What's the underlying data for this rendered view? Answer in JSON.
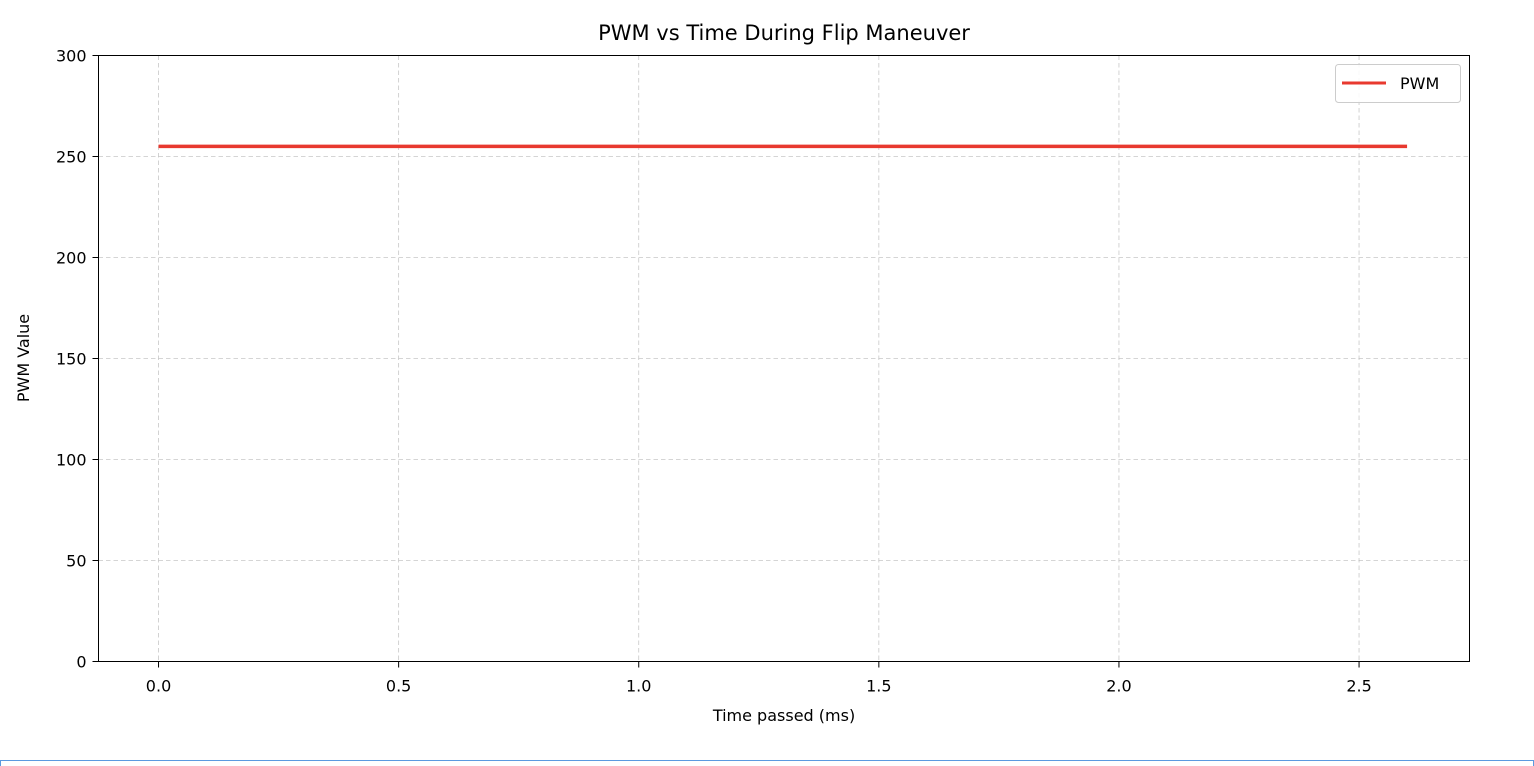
{
  "chart_data": {
    "type": "line",
    "title": "PWM vs Time During Flip Maneuver",
    "xlabel": "Time passed (ms)",
    "ylabel": "PWM Value",
    "xlim": [
      -0.125,
      2.73
    ],
    "ylim": [
      0,
      300
    ],
    "xticks": [
      "0.0",
      "0.5",
      "1.0",
      "1.5",
      "2.0",
      "2.5"
    ],
    "xtick_values": [
      0.0,
      0.5,
      1.0,
      1.5,
      2.0,
      2.5
    ],
    "yticks": [
      "0",
      "50",
      "100",
      "150",
      "200",
      "250",
      "300"
    ],
    "ytick_values": [
      0,
      50,
      100,
      150,
      200,
      250,
      300
    ],
    "grid": true,
    "legend_position": "top-right",
    "series": [
      {
        "name": "PWM",
        "color": "#e8392f",
        "x": [
          0.0,
          2.6
        ],
        "y": [
          255,
          255
        ]
      }
    ]
  }
}
